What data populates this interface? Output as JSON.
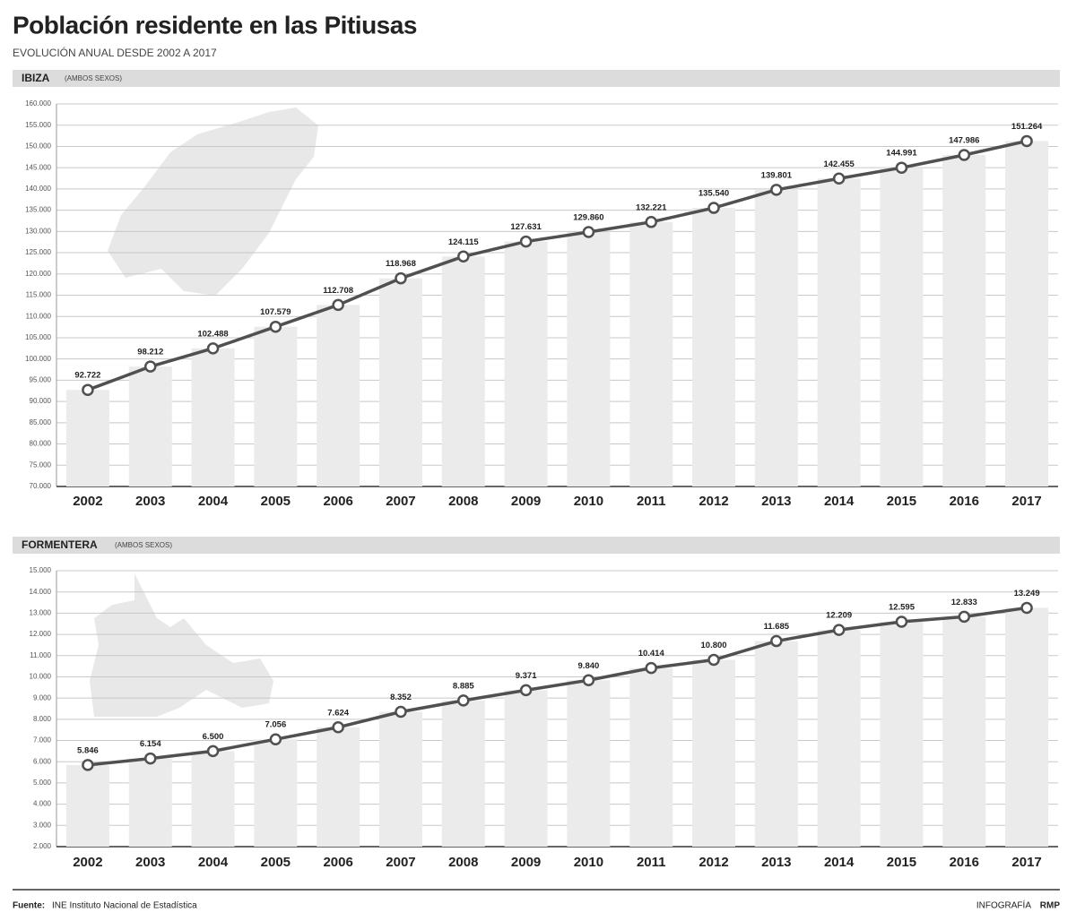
{
  "header": {
    "title": "Población residente en las Pitiusas",
    "subtitle": "EVOLUCIÓN ANUAL DESDE 2002 A 2017"
  },
  "chart_data": [
    {
      "type": "bar_line",
      "title": "IBIZA",
      "subtitle": "(AMBOS SEXOS)",
      "categories": [
        "2002",
        "2003",
        "2004",
        "2005",
        "2006",
        "2007",
        "2008",
        "2009",
        "2010",
        "2011",
        "2012",
        "2013",
        "2014",
        "2015",
        "2016",
        "2017"
      ],
      "values": [
        92722,
        98212,
        102488,
        107579,
        112708,
        118968,
        124115,
        127631,
        129860,
        132221,
        135540,
        139801,
        142455,
        144991,
        147986,
        151264
      ],
      "value_labels": [
        "92.722",
        "98.212",
        "102.488",
        "107.579",
        "112.708",
        "118.968",
        "124.115",
        "127.631",
        "129.860",
        "132.221",
        "135.540",
        "139.801",
        "142.455",
        "144.991",
        "147.986",
        "151.264"
      ],
      "color": "#505050",
      "bar_color": "#ebebeb",
      "grid": true,
      "ylim": [
        70000,
        160000
      ],
      "yticks": [
        {
          "value": 70000,
          "label": "70.000"
        },
        {
          "value": 75000,
          "label": "75.000"
        },
        {
          "value": 80000,
          "label": "80.000"
        },
        {
          "value": 85000,
          "label": "85.000"
        },
        {
          "value": 90000,
          "label": "90.000"
        },
        {
          "value": 95000,
          "label": "95.000"
        },
        {
          "value": 100000,
          "label": "100.000"
        },
        {
          "value": 105000,
          "label": "105.000"
        },
        {
          "value": 110000,
          "label": "110.000"
        },
        {
          "value": 115000,
          "label": "115.000"
        },
        {
          "value": 120000,
          "label": "120.000"
        },
        {
          "value": 125000,
          "label": "125.000"
        },
        {
          "value": 130000,
          "label": "130.000"
        },
        {
          "value": 135000,
          "label": "135.000"
        },
        {
          "value": 140000,
          "label": "140.000"
        },
        {
          "value": 145000,
          "label": "145.000"
        },
        {
          "value": 150000,
          "label": "150.000"
        },
        {
          "value": 155000,
          "label": "155.000"
        },
        {
          "value": 160000,
          "label": "160.000"
        }
      ]
    },
    {
      "type": "bar_line",
      "title": "FORMENTERA",
      "subtitle": "(AMBOS SEXOS)",
      "categories": [
        "2002",
        "2003",
        "2004",
        "2005",
        "2006",
        "2007",
        "2008",
        "2009",
        "2010",
        "2011",
        "2012",
        "2013",
        "2014",
        "2015",
        "2016",
        "2017"
      ],
      "values": [
        5846,
        6154,
        6500,
        7056,
        7624,
        8352,
        8885,
        9371,
        9840,
        10414,
        10800,
        11685,
        12209,
        12595,
        12833,
        13249
      ],
      "value_labels": [
        "5.846",
        "6.154",
        "6.500",
        "7.056",
        "7.624",
        "8.352",
        "8.885",
        "9.371",
        "9.840",
        "10.414",
        "10.800",
        "11.685",
        "12.209",
        "12.595",
        "12.833",
        "13.249"
      ],
      "color": "#505050",
      "bar_color": "#ebebeb",
      "grid": true,
      "ylim": [
        2000,
        15000
      ],
      "yticks": [
        {
          "value": 2000,
          "label": "2.000"
        },
        {
          "value": 3000,
          "label": "3.000"
        },
        {
          "value": 4000,
          "label": "4.000"
        },
        {
          "value": 5000,
          "label": "5.000"
        },
        {
          "value": 6000,
          "label": "6.000"
        },
        {
          "value": 7000,
          "label": "7.000"
        },
        {
          "value": 8000,
          "label": "8.000"
        },
        {
          "value": 9000,
          "label": "9.000"
        },
        {
          "value": 10000,
          "label": "10.000"
        },
        {
          "value": 11000,
          "label": "11.000"
        },
        {
          "value": 12000,
          "label": "12.000"
        },
        {
          "value": 13000,
          "label": "13.000"
        },
        {
          "value": 14000,
          "label": "14.000"
        },
        {
          "value": 15000,
          "label": "15.000"
        }
      ]
    }
  ],
  "footer": {
    "source_label": "Fuente:",
    "source": "INE Instituto Nacional de Estadística",
    "credit_label": "INFOGRAFÍA",
    "credit": "RMP"
  }
}
